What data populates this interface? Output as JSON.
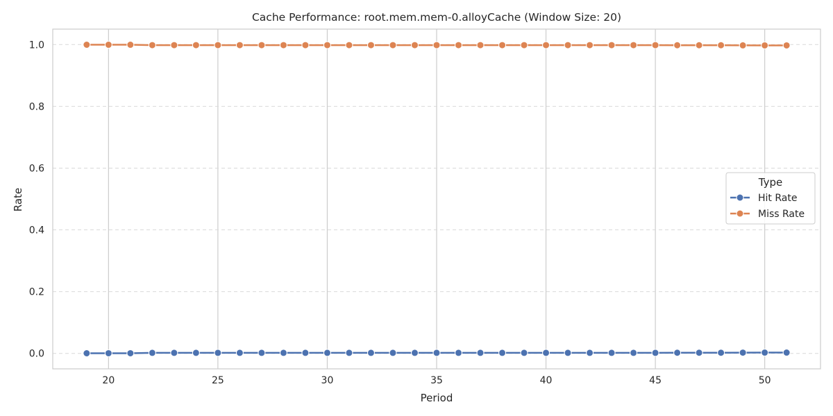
{
  "chart_data": {
    "type": "line",
    "title": "Cache Performance: root.mem.mem-0.alloyCache (Window Size: 20)",
    "xlabel": "Period",
    "ylabel": "Rate",
    "xlim": [
      17.45,
      52.55
    ],
    "ylim": [
      -0.05,
      1.05
    ],
    "xticks": [
      20,
      25,
      30,
      35,
      40,
      45,
      50
    ],
    "yticks": [
      0.0,
      0.2,
      0.4,
      0.6,
      0.8,
      1.0
    ],
    "xtick_labels": [
      "20",
      "25",
      "30",
      "35",
      "40",
      "45",
      "50"
    ],
    "ytick_labels": [
      "0.0",
      "0.2",
      "0.4",
      "0.6",
      "0.8",
      "1.0"
    ],
    "x_grid": "solid",
    "y_grid": "dashed",
    "legend": {
      "title": "Type",
      "placement": "center-right"
    },
    "x": [
      19,
      20,
      21,
      22,
      23,
      24,
      25,
      26,
      27,
      28,
      29,
      30,
      31,
      32,
      33,
      34,
      35,
      36,
      37,
      38,
      39,
      40,
      41,
      42,
      43,
      44,
      45,
      46,
      47,
      48,
      49,
      50,
      51
    ],
    "series": [
      {
        "name": "Hit Rate",
        "color": "#4c72b0",
        "values": [
          0.0005,
          0.0006,
          0.0006,
          0.0018,
          0.0018,
          0.0018,
          0.0018,
          0.0018,
          0.0018,
          0.0018,
          0.0018,
          0.0018,
          0.0018,
          0.0018,
          0.0018,
          0.0018,
          0.0018,
          0.0018,
          0.0018,
          0.0018,
          0.0018,
          0.0018,
          0.0018,
          0.0018,
          0.0018,
          0.0018,
          0.0018,
          0.0022,
          0.0022,
          0.0022,
          0.0025,
          0.0027,
          0.0027
        ]
      },
      {
        "name": "Miss Rate",
        "color": "#dd8452",
        "values": [
          0.9995,
          0.9994,
          0.9994,
          0.9982,
          0.9982,
          0.9982,
          0.9982,
          0.9982,
          0.9982,
          0.9982,
          0.9982,
          0.9982,
          0.9982,
          0.9982,
          0.9982,
          0.9982,
          0.9982,
          0.9982,
          0.9982,
          0.9982,
          0.9982,
          0.9982,
          0.9982,
          0.9982,
          0.9982,
          0.9982,
          0.9982,
          0.9978,
          0.9978,
          0.9978,
          0.9975,
          0.9973,
          0.9973
        ]
      }
    ]
  }
}
